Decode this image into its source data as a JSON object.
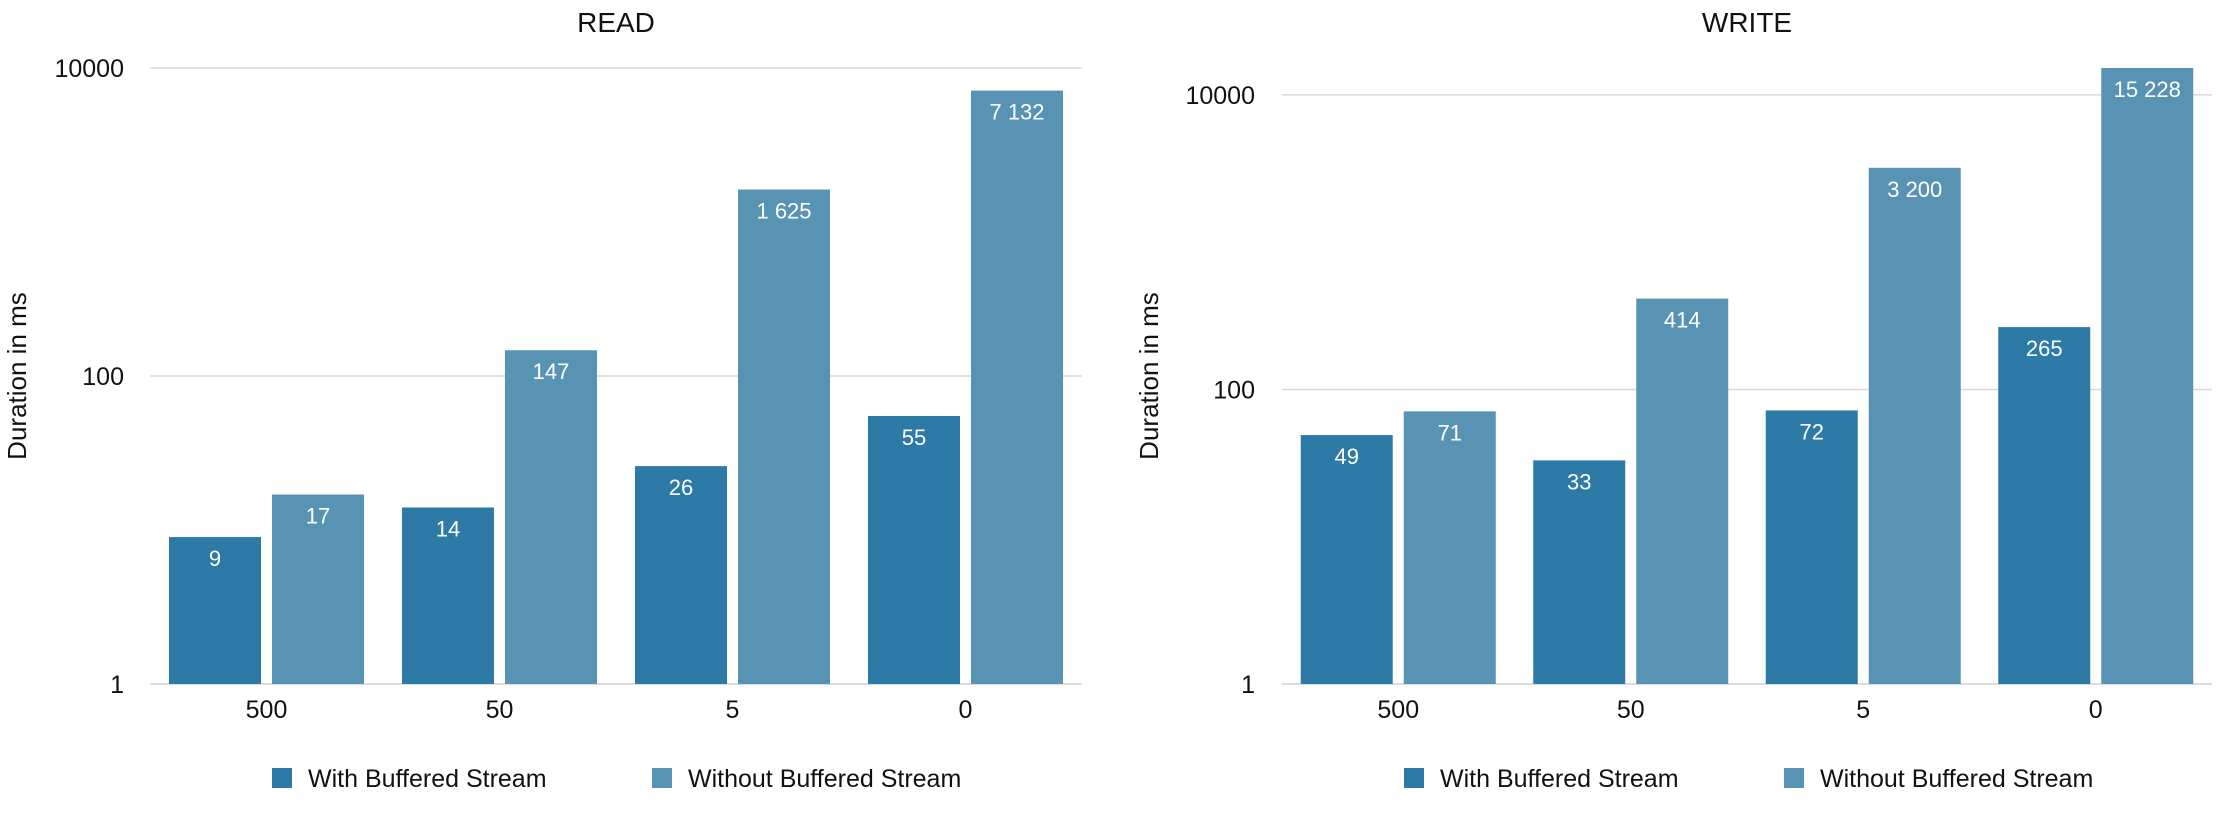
{
  "colors": {
    "with": "#2e7aa6",
    "without": "#5993b3",
    "grid": "#d9d9d9",
    "axis_line": "#d0d0d0",
    "text": "#111111",
    "bar_label": "#ffffff"
  },
  "chart_data": [
    {
      "type": "bar",
      "title": "READ",
      "ylabel": "Duration in ms",
      "xlabel": "",
      "yscale": "log",
      "ylim": [
        1,
        10000
      ],
      "yticks": [
        "1",
        "100",
        "10000"
      ],
      "grid": true,
      "legend": "bottom",
      "categories": [
        "500",
        "50",
        "5",
        "0"
      ],
      "series": [
        {
          "name": "With Buffered Stream",
          "values": [
            9,
            14,
            26,
            55
          ],
          "labels": [
            "9",
            "14",
            "26",
            "55"
          ]
        },
        {
          "name": "Without Buffered Stream",
          "values": [
            17,
            147,
            1625,
            7132
          ],
          "labels": [
            "17",
            "147",
            "1 625",
            "7 132"
          ]
        }
      ]
    },
    {
      "type": "bar",
      "title": "WRITE",
      "ylabel": "Duration in ms",
      "xlabel": "",
      "yscale": "log",
      "ylim": [
        1,
        15228
      ],
      "yticks": [
        "1",
        "100",
        "10000"
      ],
      "grid": true,
      "legend": "bottom",
      "categories": [
        "500",
        "50",
        "5",
        "0"
      ],
      "series": [
        {
          "name": "With Buffered Stream",
          "values": [
            49,
            33,
            72,
            265
          ],
          "labels": [
            "49",
            "33",
            "72",
            "265"
          ]
        },
        {
          "name": "Without Buffered Stream",
          "values": [
            71,
            414,
            3200,
            15228
          ],
          "labels": [
            "71",
            "414",
            "3 200",
            "15 228"
          ]
        }
      ]
    }
  ]
}
